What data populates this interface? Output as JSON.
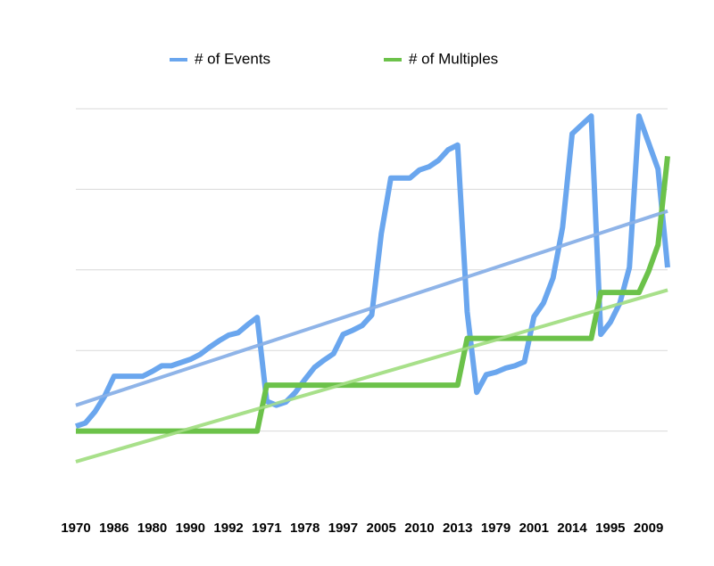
{
  "chart_data": {
    "type": "line",
    "categories": [
      "1970",
      null,
      null,
      null,
      "1986",
      null,
      null,
      null,
      "1980",
      null,
      null,
      null,
      "1990",
      null,
      null,
      null,
      "1992",
      null,
      null,
      null,
      "1971",
      null,
      null,
      null,
      "1978",
      null,
      null,
      null,
      "1997",
      null,
      null,
      null,
      "2005",
      null,
      null,
      null,
      "2010",
      null,
      null,
      null,
      "2013",
      null,
      null,
      null,
      "1979",
      null,
      null,
      null,
      "2001",
      null,
      null,
      null,
      "2014",
      null,
      null,
      null,
      "1995",
      null,
      null,
      null,
      "2009",
      null,
      null
    ],
    "series": [
      {
        "name": "# of Events",
        "color": "#6aa6ee",
        "trend_color": "#8fb4e8",
        "values": [
          10.6,
          11,
          12.4,
          14.3,
          16.8,
          16.8,
          16.8,
          16.8,
          17.4,
          18.1,
          18.1,
          18.5,
          18.9,
          19.5,
          20.4,
          21.2,
          21.9,
          22.2,
          23.2,
          24.1,
          13.7,
          13.2,
          13.6,
          14.8,
          16.4,
          17.9,
          18.8,
          19.6,
          22.0,
          22.5,
          23.1,
          24.4,
          34.5,
          41.4,
          41.4,
          41.4,
          42.4,
          42.8,
          43.6,
          44.9,
          45.5,
          24.8,
          14.8,
          17.0,
          17.3,
          17.8,
          18.1,
          18.6,
          24.2,
          25.9,
          29.0,
          35.3,
          46.9,
          48.0,
          49.1,
          22.0,
          23.5,
          25.9,
          30.3,
          49.1,
          45.8,
          42.5,
          30.3
        ],
        "trend": [
          13.2,
          37.3
        ]
      },
      {
        "name": "# of Multiples",
        "color": "#6cc24a",
        "trend_color": "#a8e08a",
        "values": [
          10,
          10,
          10,
          10,
          10,
          10,
          10,
          10,
          10,
          10,
          10,
          10,
          10,
          10,
          10,
          10,
          10,
          10,
          10,
          10,
          15.7,
          15.7,
          15.7,
          15.7,
          15.7,
          15.7,
          15.7,
          15.7,
          15.7,
          15.7,
          15.7,
          15.7,
          15.7,
          15.7,
          15.7,
          15.7,
          15.7,
          15.7,
          15.7,
          15.7,
          15.7,
          21.5,
          21.5,
          21.5,
          21.5,
          21.5,
          21.5,
          21.5,
          21.5,
          21.5,
          21.5,
          21.5,
          21.5,
          21.5,
          21.5,
          27.2,
          27.2,
          27.2,
          27.2,
          27.2,
          29.8,
          33.1,
          44.1
        ],
        "trend": [
          6.2,
          27.5
        ]
      }
    ],
    "ylim": [
      0,
      50
    ],
    "yticks": [
      10,
      20,
      30,
      40,
      50
    ],
    "grid": true
  }
}
